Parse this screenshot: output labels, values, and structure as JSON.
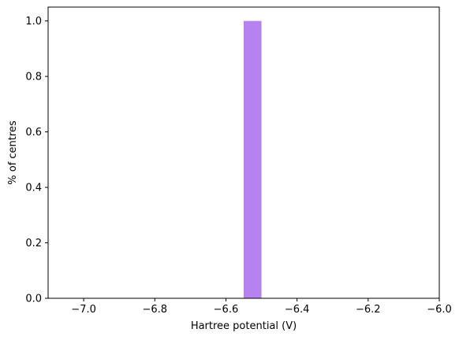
{
  "chart_data": {
    "type": "bar",
    "subtype": "histogram",
    "title": "",
    "xlabel": "Hartree potential (V)",
    "ylabel": "% of centres",
    "xlim": [
      -7.1,
      -6.0
    ],
    "ylim": [
      0.0,
      1.05
    ],
    "x_ticks": [
      -7.0,
      -6.8,
      -6.6,
      -6.4,
      -6.2,
      -6.0
    ],
    "x_tick_labels": [
      "−7.0",
      "−6.8",
      "−6.6",
      "−6.4",
      "−6.2",
      "−6.0"
    ],
    "y_ticks": [
      0.0,
      0.2,
      0.4,
      0.6,
      0.8,
      1.0
    ],
    "y_tick_labels": [
      "0.0",
      "0.2",
      "0.4",
      "0.6",
      "0.8",
      "1.0"
    ],
    "bins": [
      {
        "x_start": -6.55,
        "x_end": -6.5,
        "value": 1.0
      }
    ],
    "bar_color": "#b582f0",
    "grid": false,
    "legend": "none"
  }
}
